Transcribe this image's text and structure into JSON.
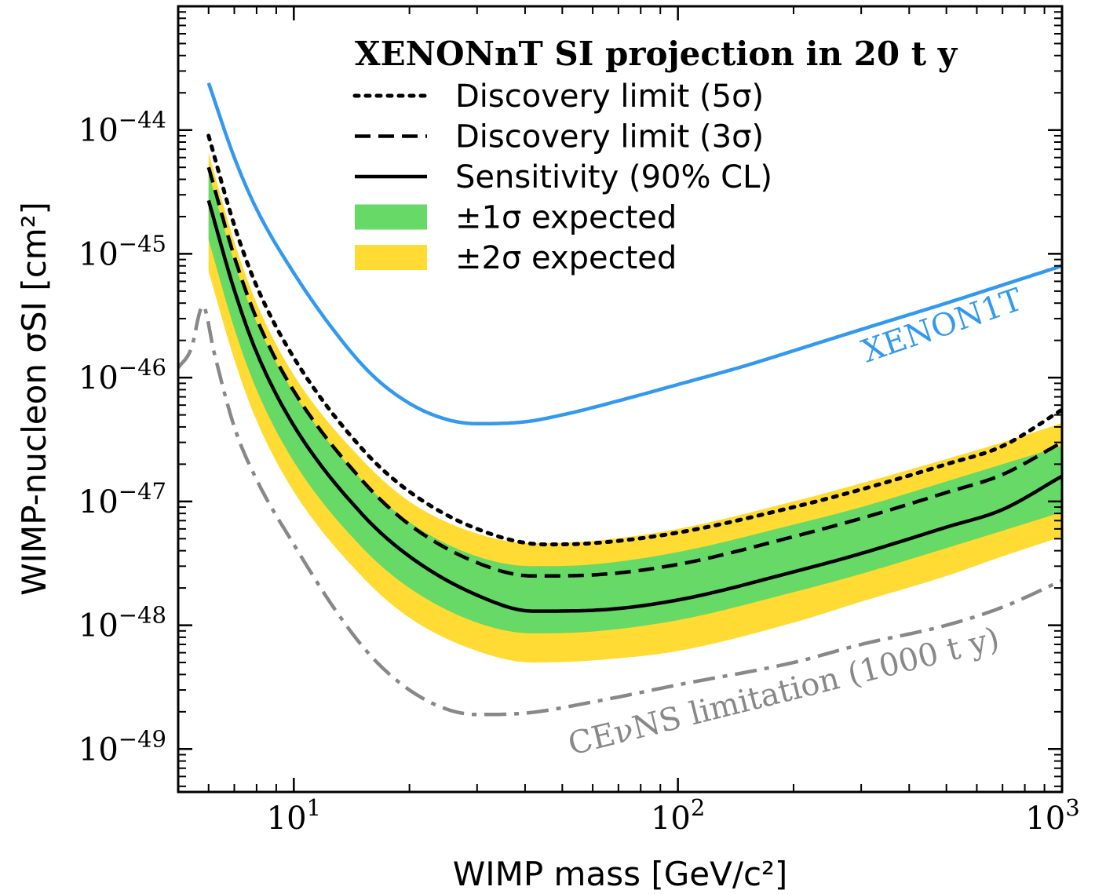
{
  "chart_data": {
    "type": "line",
    "xscale": "log",
    "yscale": "log",
    "xlim": [
      5,
      1000
    ],
    "ylim": [
      4.5e-50,
      1e-43
    ],
    "xlabel": "WIMP mass [GeV/c²]",
    "ylabel": "WIMP-nucleon σSI [cm²]",
    "x_ticks": [
      {
        "value": 10,
        "base": "10",
        "exp": "1"
      },
      {
        "value": 100,
        "base": "10",
        "exp": "2"
      },
      {
        "value": 1000,
        "base": "10",
        "exp": "3"
      }
    ],
    "y_ticks": [
      {
        "value": 1e-44,
        "base": "10",
        "exp": "−44"
      },
      {
        "value": 1e-45,
        "base": "10",
        "exp": "−45"
      },
      {
        "value": 1e-46,
        "base": "10",
        "exp": "−46"
      },
      {
        "value": 1e-47,
        "base": "10",
        "exp": "−47"
      },
      {
        "value": 1e-48,
        "base": "10",
        "exp": "−48"
      },
      {
        "value": 1e-49,
        "base": "10",
        "exp": "−49"
      }
    ],
    "legend": {
      "title": "XENONnT SI projection in 20 t y",
      "placement": "top-right",
      "entries": [
        {
          "label": "Discovery limit (5σ)",
          "kind": "line",
          "style": "dotted",
          "color": "#000000"
        },
        {
          "label": "Discovery limit (3σ)",
          "kind": "line",
          "style": "dashed",
          "color": "#000000"
        },
        {
          "label": "Sensitivity (90% CL)",
          "kind": "line",
          "style": "solid",
          "color": "#000000"
        },
        {
          "label": "±1σ expected",
          "kind": "band",
          "color": "#66d966"
        },
        {
          "label": "±2σ expected",
          "kind": "band",
          "color": "#ffdb33"
        }
      ]
    },
    "bands": [
      {
        "name": "±2σ expected",
        "color": "#ffdb33",
        "x": [
          6,
          7,
          8,
          10,
          15,
          20,
          30,
          42,
          60,
          100,
          200,
          300,
          500,
          700,
          1000
        ],
        "upper": [
          6.5e-45,
          1.25e-45,
          4e-46,
          1.05e-46,
          2.2e-47,
          1e-47,
          5.5e-48,
          4.6e-48,
          4.8e-48,
          6e-48,
          1e-47,
          1.4e-47,
          2.2e-47,
          3e-47,
          4.3e-47
        ],
        "lower": [
          7.2e-46,
          1.4e-46,
          4.5e-47,
          1.2e-47,
          2.5e-48,
          1.15e-48,
          6.2e-49,
          5e-49,
          5.2e-49,
          6.2e-49,
          1.05e-48,
          1.55e-48,
          2.5e-48,
          3.6e-48,
          5.2e-48
        ]
      },
      {
        "name": "±1σ expected",
        "color": "#66d966",
        "x": [
          6,
          7,
          8,
          10,
          15,
          20,
          30,
          42,
          60,
          100,
          200,
          300,
          500,
          700,
          1000
        ],
        "upper": [
          4.5e-45,
          8.5e-46,
          2.8e-46,
          7.5e-47,
          1.5e-47,
          6.8e-48,
          3.6e-48,
          3e-48,
          3.1e-48,
          3.9e-48,
          6.5e-48,
          9e-48,
          1.45e-47,
          2e-47,
          2.8e-47
        ],
        "lower": [
          1.3e-45,
          2.5e-46,
          8e-47,
          2.1e-47,
          4.3e-48,
          2e-48,
          1.05e-48,
          8.6e-49,
          8.9e-49,
          1.1e-48,
          1.85e-48,
          2.6e-48,
          4.2e-48,
          5.8e-48,
          8.2e-48
        ]
      }
    ],
    "series": [
      {
        "name": "XENON1T",
        "color": "#3399ee",
        "style": "solid",
        "x": [
          6,
          7,
          8,
          10,
          13,
          16,
          20,
          25,
          30,
          40,
          50,
          70,
          100,
          150,
          200,
          300,
          500,
          700,
          1000
        ],
        "y": [
          2.4e-44,
          6e-45,
          2.3e-45,
          7e-46,
          2.2e-46,
          1.05e-46,
          6.2e-47,
          4.6e-47,
          4.25e-47,
          4.4e-47,
          5e-47,
          6.5e-47,
          8.8e-47,
          1.25e-46,
          1.65e-46,
          2.45e-46,
          4e-46,
          5.6e-46,
          8e-46
        ]
      },
      {
        "name": "Discovery limit (5σ)",
        "color": "#000000",
        "style": "dotted",
        "x": [
          6,
          7,
          8,
          10,
          15,
          20,
          30,
          45,
          60,
          100,
          200,
          300,
          500,
          700,
          1000
        ],
        "y": [
          9e-45,
          1.7e-45,
          5.5e-46,
          1.45e-46,
          2.7e-47,
          1.2e-47,
          6e-48,
          4.5e-48,
          4.6e-48,
          5.6e-48,
          9e-48,
          1.25e-47,
          2e-47,
          2.8e-47,
          5.5e-47
        ]
      },
      {
        "name": "Discovery limit (3σ)",
        "color": "#000000",
        "style": "dashed",
        "x": [
          6,
          7,
          8,
          10,
          15,
          20,
          30,
          42,
          60,
          100,
          200,
          300,
          500,
          700,
          1000
        ],
        "y": [
          5e-45,
          9.5e-46,
          3e-46,
          7.8e-47,
          1.5e-47,
          6.5e-48,
          3.2e-48,
          2.5e-48,
          2.55e-48,
          3.1e-48,
          5.2e-48,
          7.3e-48,
          1.18e-47,
          1.65e-47,
          3e-47
        ]
      },
      {
        "name": "Sensitivity (90% CL)",
        "color": "#000000",
        "style": "solid",
        "x": [
          6,
          7,
          8,
          10,
          15,
          20,
          30,
          42,
          60,
          100,
          200,
          300,
          500,
          700,
          1000
        ],
        "y": [
          2.7e-45,
          5.1e-46,
          1.6e-46,
          4.1e-47,
          8e-48,
          3.6e-48,
          1.75e-48,
          1.3e-48,
          1.32e-48,
          1.6e-48,
          2.7e-48,
          3.8e-48,
          6.2e-48,
          8.6e-48,
          1.6e-47
        ]
      },
      {
        "name": "CEνNS limitation (1000 t y)",
        "color": "#888888",
        "style": "dashdot",
        "x": [
          5,
          5.4,
          5.8,
          6.2,
          7,
          8,
          10,
          13,
          16,
          20,
          25,
          30,
          40,
          60,
          100,
          200,
          300,
          500,
          700,
          1000
        ],
        "y": [
          1.2e-46,
          1.7e-46,
          3.8e-46,
          1.6e-46,
          4e-47,
          1.5e-47,
          4.5e-48,
          1.25e-48,
          5.5e-49,
          3e-49,
          2.1e-49,
          1.9e-49,
          1.95e-49,
          2.4e-49,
          3.3e-49,
          5e-49,
          7e-49,
          1e-48,
          1.4e-48,
          2.3e-48
        ]
      }
    ],
    "annotations": [
      {
        "text": "XENON1T",
        "color": "#3399ee"
      },
      {
        "text": "CEνNS limitation (1000 t y)",
        "color": "#888888"
      }
    ]
  }
}
